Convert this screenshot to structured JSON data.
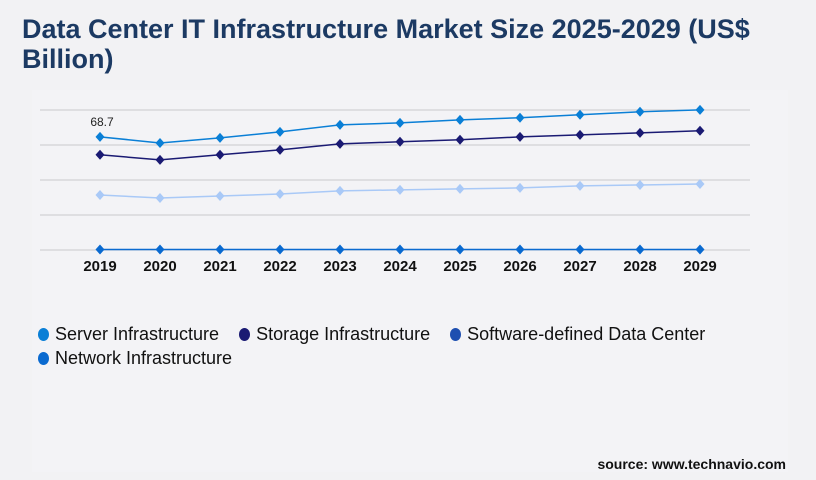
{
  "title": "Data Center IT Infrastructure Market Size 2025-2029 (US$ Billion)",
  "source": "source: www.technavio.com",
  "chart_data": {
    "type": "line",
    "title": "Data Center IT Infrastructure Market Size 2025-2029 (US$ Billion)",
    "x": [
      "2019",
      "2020",
      "2021",
      "2022",
      "2023",
      "2024",
      "2025",
      "2026",
      "2027",
      "2028",
      "2029"
    ],
    "ylim": [
      0,
      85
    ],
    "grid": true,
    "legend_placement": "bottom",
    "annotations": [
      {
        "series": "Server Infrastructure",
        "x": "2019",
        "label": "68.7"
      }
    ],
    "series": [
      {
        "name": "Server Infrastructure",
        "color": "#0a7fd6",
        "values": [
          68.7,
          65.0,
          68.1,
          71.7,
          76.0,
          77.2,
          79.0,
          80.3,
          82.1,
          83.9,
          85.1
        ]
      },
      {
        "name": "Storage Infrastructure",
        "color": "#1a1a73",
        "values": [
          57.8,
          54.7,
          57.8,
          60.8,
          64.4,
          65.7,
          66.9,
          68.7,
          69.9,
          71.1,
          72.4
        ]
      },
      {
        "name": "Software-defined Data Center",
        "color": "#a9c9f7",
        "legend_color": "#1e4fb0",
        "values": [
          33.4,
          31.6,
          32.8,
          34.0,
          35.9,
          36.5,
          37.1,
          37.7,
          38.9,
          39.5,
          40.1
        ]
      },
      {
        "name": "Network Infrastructure",
        "color": "#0a6ad0",
        "values": [
          0.3,
          0.3,
          0.3,
          0.3,
          0.3,
          0.3,
          0.3,
          0.3,
          0.3,
          0.3,
          0.3
        ]
      }
    ]
  }
}
